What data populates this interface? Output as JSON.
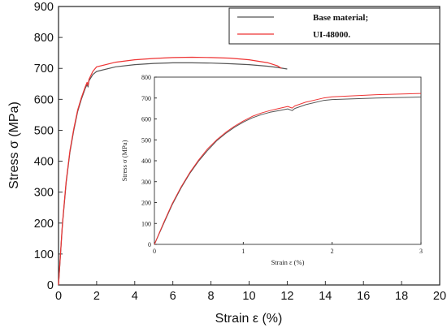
{
  "chart_data": [
    {
      "type": "line",
      "xlabel": "Strain ε (%)",
      "ylabel": "Stress σ (MPa)",
      "xlim": [
        0,
        20
      ],
      "ylim": [
        0,
        900
      ],
      "xticks": [
        "0",
        "2",
        "4",
        "6",
        "8",
        "10",
        "12",
        "14",
        "16",
        "18",
        "20"
      ],
      "yticks": [
        "0",
        "100",
        "200",
        "300",
        "400",
        "500",
        "600",
        "700",
        "800",
        "900"
      ],
      "grid": false,
      "legend": "top-right",
      "series": [
        {
          "name": "Base material;",
          "color": "#555555",
          "x": [
            0,
            0.2,
            0.4,
            0.6,
            0.8,
            1.0,
            1.2,
            1.4,
            1.5,
            1.55,
            1.6,
            1.8,
            2.0,
            3.0,
            4.0,
            5.0,
            6.0,
            7.0,
            8.0,
            9.0,
            10.0,
            11.0,
            11.5,
            12.0
          ],
          "y": [
            0,
            190,
            330,
            430,
            500,
            560,
            600,
            635,
            648,
            640,
            660,
            680,
            690,
            705,
            712,
            716,
            718,
            718,
            717,
            715,
            712,
            707,
            703,
            698
          ]
        },
        {
          "name": "UI-48000.",
          "color": "#ee3333",
          "x": [
            0,
            0.2,
            0.4,
            0.6,
            0.8,
            1.0,
            1.2,
            1.4,
            1.5,
            1.55,
            1.6,
            1.8,
            2.0,
            3.0,
            4.0,
            5.0,
            6.0,
            7.0,
            8.0,
            9.0,
            10.0,
            11.0,
            11.5,
            11.7
          ],
          "y": [
            0,
            195,
            335,
            435,
            505,
            565,
            605,
            640,
            655,
            645,
            665,
            690,
            705,
            720,
            728,
            732,
            735,
            736,
            735,
            733,
            728,
            718,
            708,
            700
          ]
        }
      ]
    },
    {
      "type": "line",
      "xlabel": "Strain ε (%)",
      "ylabel": "Stress σ (MPa)",
      "xlim": [
        0,
        3
      ],
      "ylim": [
        0,
        800
      ],
      "xticks": [
        "0",
        "1",
        "2",
        "3"
      ],
      "yticks": [
        "0",
        "100",
        "200",
        "300",
        "400",
        "500",
        "600",
        "700",
        "800"
      ],
      "grid": false,
      "series": [
        {
          "name": "Base material;",
          "color": "#555555",
          "x": [
            0,
            0.1,
            0.2,
            0.3,
            0.4,
            0.5,
            0.6,
            0.7,
            0.8,
            0.9,
            1.0,
            1.1,
            1.2,
            1.3,
            1.4,
            1.5,
            1.55,
            1.58,
            1.7,
            1.9,
            2.0,
            2.5,
            3.0
          ],
          "y": [
            0,
            95,
            190,
            270,
            340,
            400,
            450,
            495,
            530,
            560,
            585,
            605,
            620,
            632,
            640,
            648,
            640,
            650,
            668,
            688,
            693,
            700,
            705
          ]
        },
        {
          "name": "UI-48000.",
          "color": "#ee3333",
          "x": [
            0,
            0.1,
            0.2,
            0.3,
            0.4,
            0.5,
            0.6,
            0.7,
            0.8,
            0.9,
            1.0,
            1.1,
            1.2,
            1.3,
            1.4,
            1.5,
            1.55,
            1.58,
            1.7,
            1.9,
            2.0,
            2.5,
            3.0
          ],
          "y": [
            0,
            100,
            195,
            275,
            345,
            405,
            458,
            500,
            535,
            565,
            590,
            612,
            628,
            640,
            650,
            660,
            652,
            662,
            680,
            700,
            706,
            716,
            722
          ]
        }
      ]
    }
  ]
}
